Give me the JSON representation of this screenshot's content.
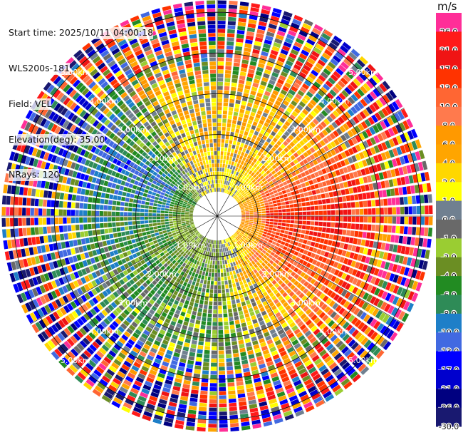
{
  "header": {
    "start_time": "Start time: 2025/10/11 04:00:18",
    "station": "WLS200s-181",
    "field": "Field: VEL",
    "elevation": "Elevation(deg): 35.00",
    "nrays": "NRays: 120"
  },
  "colorbar": {
    "unit": "m/s",
    "bins": [
      {
        "label": "26.0",
        "color": "#ff2e98"
      },
      {
        "label": "21.0",
        "color": "#ff1a1a"
      },
      {
        "label": "17.0",
        "color": "#f01414"
      },
      {
        "label": "13.0",
        "color": "#ff3300"
      },
      {
        "label": "10.0",
        "color": "#ff6633"
      },
      {
        "label": "8.0",
        "color": "#ff7a4d"
      },
      {
        "label": "6.0",
        "color": "#ff9900"
      },
      {
        "label": "4.0",
        "color": "#ffa500"
      },
      {
        "label": "2.0",
        "color": "#ffd700"
      },
      {
        "label": "1.0",
        "color": "#ffff00"
      },
      {
        "label": "0.0",
        "color": "#708090"
      },
      {
        "label": "-1.0",
        "color": "#696969"
      },
      {
        "label": "-2.0",
        "color": "#9acd32"
      },
      {
        "label": "-4.0",
        "color": "#6b8e23"
      },
      {
        "label": "-6.0",
        "color": "#228b22"
      },
      {
        "label": "-8.0",
        "color": "#2e8b57"
      },
      {
        "label": "-10.0",
        "color": "#1e7fc8"
      },
      {
        "label": "-13.0",
        "color": "#4169e1"
      },
      {
        "label": "-17.0",
        "color": "#0000ff"
      },
      {
        "label": "-21.0",
        "color": "#0000cd"
      },
      {
        "label": "-26.0",
        "color": "#000080"
      },
      {
        "label": "-30.0",
        "color": "#191970"
      }
    ]
  },
  "chart_data": {
    "type": "heatmap",
    "projection": "polar PPI",
    "field": "VEL",
    "units": "m/s",
    "nrays": 120,
    "range_rings_km": [
      1.0,
      2.0,
      3.0,
      4.0,
      5.0
    ],
    "ring_labels": [
      "1.00km",
      "2.00km",
      "3.00km",
      "4.00km",
      "5.00km"
    ],
    "max_range_km": 5.3,
    "radial_spokes": 12,
    "approx_pattern": [
      {
        "sector": "east",
        "azimuth_deg": 90,
        "velocity_ms": 17.0
      },
      {
        "sector": "northeast",
        "azimuth_deg": 45,
        "velocity_ms": 4.0
      },
      {
        "sector": "north-northwest",
        "azimuth_deg": 330,
        "velocity_ms": 2.0
      },
      {
        "sector": "west-northwest",
        "azimuth_deg": 300,
        "velocity_ms": -10.0
      },
      {
        "sector": "west",
        "azimuth_deg": 270,
        "velocity_ms": -6.0
      },
      {
        "sector": "southwest",
        "azimuth_deg": 225,
        "velocity_ms": -4.0
      },
      {
        "sector": "south",
        "azimuth_deg": 180,
        "velocity_ms": -2.0
      }
    ]
  }
}
